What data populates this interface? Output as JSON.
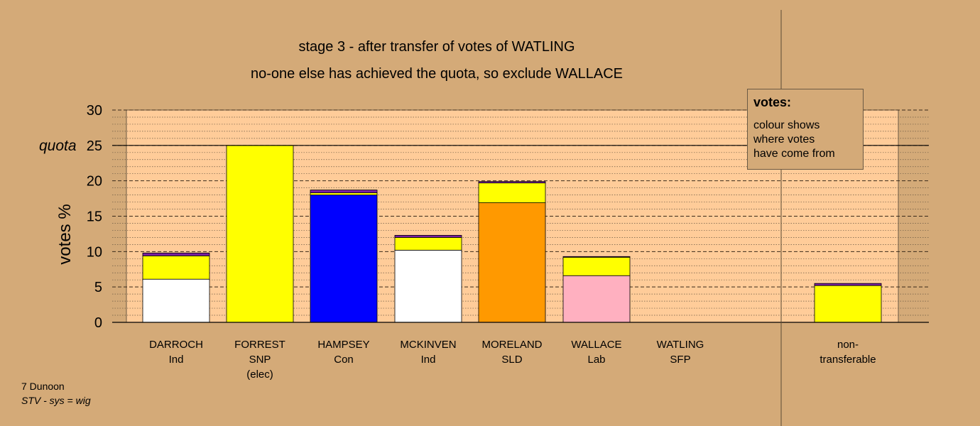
{
  "chart_data": {
    "type": "bar",
    "title": "stage 3 - after transfer of votes of WATLING",
    "subtitle": "no-one else has achieved the quota, so exclude WALLACE",
    "ylabel": "votes %",
    "ylim": [
      0,
      30
    ],
    "yticks": [
      0,
      5,
      10,
      15,
      20,
      25,
      30
    ],
    "quota": {
      "label": "quota",
      "value": 25
    },
    "categories": [
      {
        "name": "DARROCH",
        "party": "Ind",
        "note": ""
      },
      {
        "name": "FORREST",
        "party": "SNP",
        "note": "(elec)"
      },
      {
        "name": "HAMPSEY",
        "party": "Con",
        "note": ""
      },
      {
        "name": "MCKINVEN",
        "party": "Ind",
        "note": ""
      },
      {
        "name": "MORELAND",
        "party": "SLD",
        "note": ""
      },
      {
        "name": "WALLACE",
        "party": "Lab",
        "note": ""
      },
      {
        "name": "WATLING",
        "party": "SFP",
        "note": ""
      }
    ],
    "nontransferable": {
      "label_1": "non-",
      "label_2": "transferable"
    },
    "stacks": [
      [
        {
          "value": 6.1,
          "color": "#ffffff"
        },
        {
          "value": 3.3,
          "color": "#ffff00"
        },
        {
          "value": 0.4,
          "color": "#7a1fa2"
        }
      ],
      [
        {
          "value": 25.0,
          "color": "#ffff00"
        }
      ],
      [
        {
          "value": 18.0,
          "color": "#0000ff"
        },
        {
          "value": 0.3,
          "color": "#ffff00"
        },
        {
          "value": 0.4,
          "color": "#7a1fa2"
        }
      ],
      [
        {
          "value": 10.2,
          "color": "#ffffff"
        },
        {
          "value": 1.8,
          "color": "#ffff00"
        },
        {
          "value": 0.3,
          "color": "#7a1fa2"
        }
      ],
      [
        {
          "value": 16.9,
          "color": "#ff9900"
        },
        {
          "value": 2.8,
          "color": "#ffff00"
        },
        {
          "value": 0.2,
          "color": "#7a1fa2"
        }
      ],
      [
        {
          "value": 6.6,
          "color": "#ffb0c0"
        },
        {
          "value": 2.6,
          "color": "#ffff00"
        },
        {
          "value": 0.1,
          "color": "#7a1fa2"
        }
      ],
      [],
      [
        {
          "value": 5.2,
          "color": "#ffff00"
        },
        {
          "value": 0.3,
          "color": "#7a1fa2"
        }
      ]
    ],
    "grid": true,
    "legend": {
      "title": "votes:",
      "lines": [
        "colour shows",
        "where votes",
        "have come from"
      ],
      "placement": "top-right"
    }
  },
  "footer": {
    "line1": "7 Dunoon",
    "line2": "STV - sys = wig"
  },
  "colors": {
    "background": "#d4aa78",
    "plot_area": "#ffcc99"
  }
}
